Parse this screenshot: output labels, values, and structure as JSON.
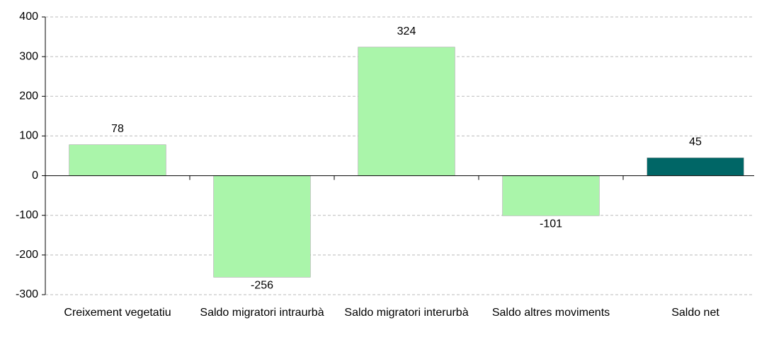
{
  "chart_data": {
    "type": "bar",
    "categories": [
      "Creixement vegetatiu",
      "Saldo migratori intraurbà",
      "Saldo migratori interurbà",
      "Saldo altres moviments",
      "Saldo net"
    ],
    "values": [
      78,
      -256,
      324,
      -101,
      45
    ],
    "colors": [
      "#aaf5aa",
      "#aaf5aa",
      "#aaf5aa",
      "#aaf5aa",
      "#006666"
    ],
    "ylim": [
      -300,
      400
    ],
    "yticks": [
      -300,
      -200,
      -100,
      0,
      100,
      200,
      300,
      400
    ],
    "grid": true
  }
}
